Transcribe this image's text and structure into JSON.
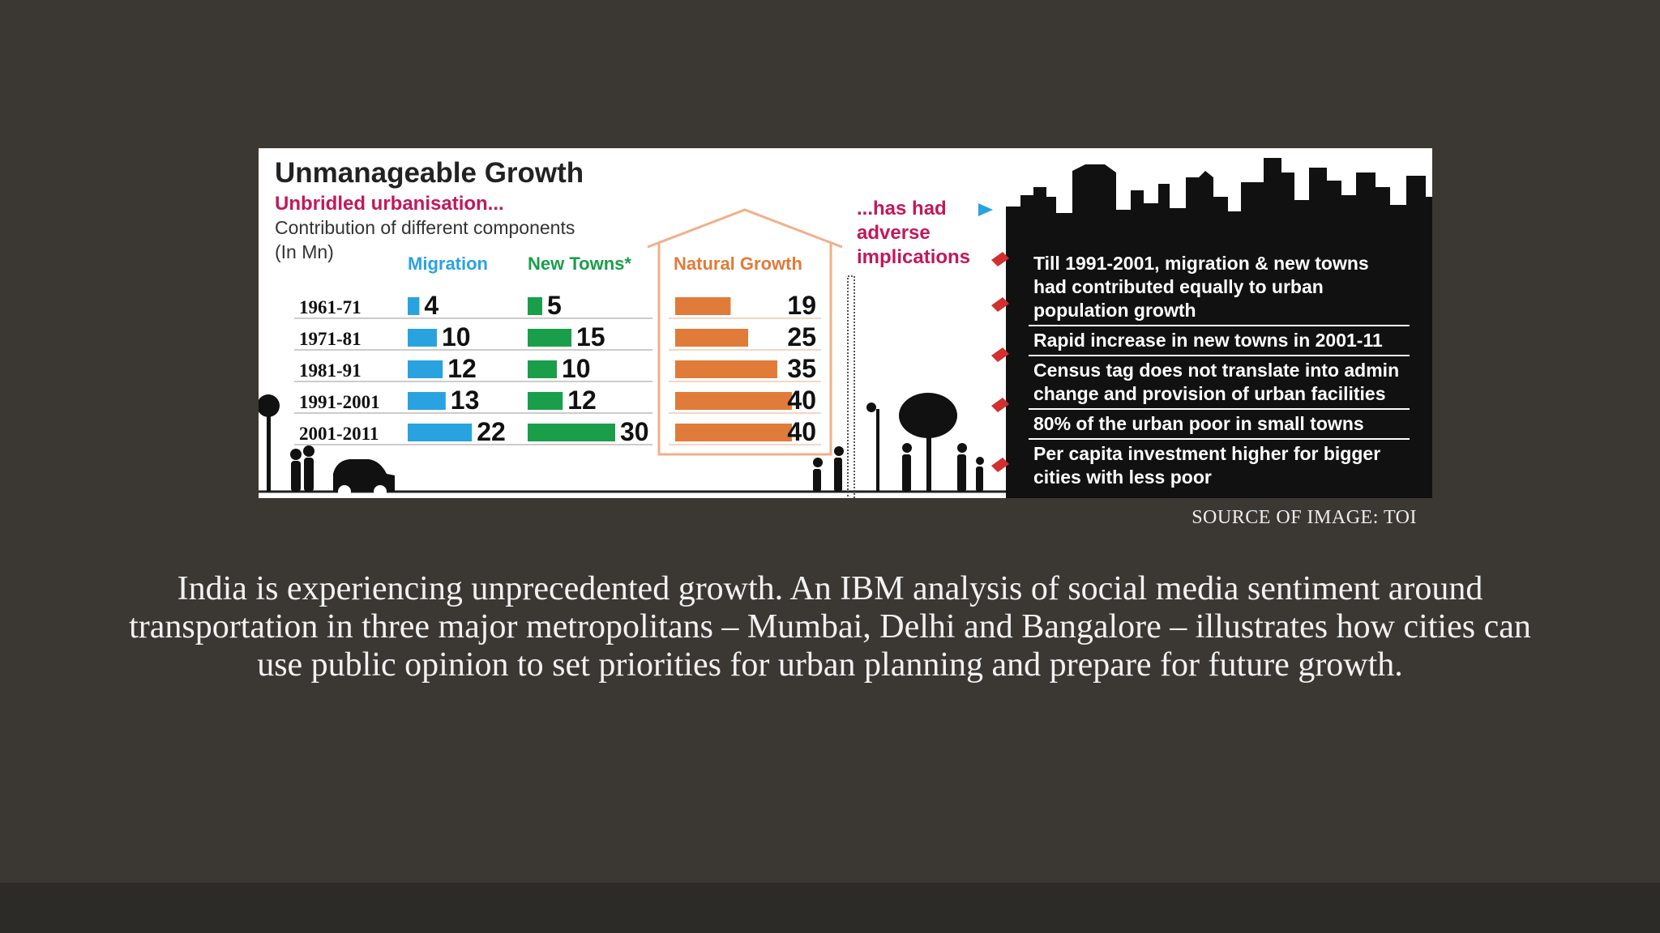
{
  "infographic": {
    "title": "Unmanageable Growth",
    "subtitle": "Unbridled urbanisation...",
    "caption_line1": "Contribution of different components",
    "caption_line2": "(In Mn)",
    "implications_heading": [
      "...has had",
      "adverse",
      "implications"
    ],
    "implications": [
      [
        "Till 1991-2001, migration & new towns",
        "had contributed equally to urban",
        "population growth"
      ],
      [
        "Rapid increase in new towns in 2001-11"
      ],
      [
        "Census tag does not translate into admin",
        "change and provision of urban facilities"
      ],
      [
        "80% of the urban poor in small towns"
      ],
      [
        "Per capita investment higher for bigger",
        "cities with less poor"
      ]
    ],
    "colors": {
      "title": "#222222",
      "subtitle": "#c2185b",
      "migration": "#29a3e0",
      "new_towns": "#1a9e4a",
      "natural_growth": "#e07b39",
      "panel": "#111111"
    }
  },
  "chart_data": {
    "type": "bar",
    "categories": [
      "1961-71",
      "1971-81",
      "1981-91",
      "1991-2001",
      "2001-2011"
    ],
    "series": [
      {
        "name": "Migration",
        "values": [
          4,
          10,
          12,
          13,
          22
        ]
      },
      {
        "name": "New Towns*",
        "values": [
          5,
          15,
          10,
          12,
          30
        ]
      },
      {
        "name": "Natural Growth",
        "values": [
          19,
          25,
          35,
          40,
          40
        ]
      }
    ],
    "title": "Unmanageable Growth",
    "subtitle": "Unbridled urbanisation...",
    "ylabel": "Contribution of different components (In Mn)",
    "grid": false,
    "legend": "top"
  },
  "source_text": "SOURCE OF IMAGE: TOI",
  "body_text": "India is experiencing unprecedented growth. An IBM analysis of social media sentiment around transportation in three major metropolitans – Mumbai, Delhi and Bangalore – illustrates how cities can use public opinion to set priorities for urban planning and prepare for future growth."
}
